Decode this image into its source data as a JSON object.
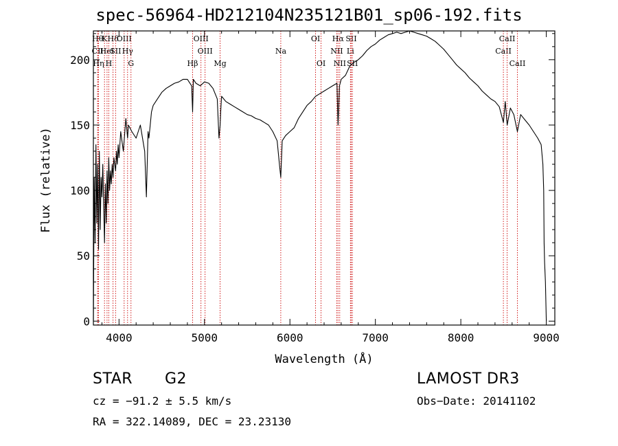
{
  "chart_data": {
    "type": "line",
    "title": "spec-56964-HD212104N235121B01_sp06-192.fits",
    "xlabel": "Wavelength (Å)",
    "ylabel": "Flux (relative)",
    "xlim": [
      3700,
      9100
    ],
    "ylim": [
      -3,
      222
    ],
    "x_ticks": [
      4000,
      5000,
      6000,
      7000,
      8000,
      9000
    ],
    "y_ticks": [
      0,
      50,
      100,
      150,
      200
    ],
    "x_tick_labels": [
      "4000",
      "5000",
      "6000",
      "7000",
      "8000",
      "9000"
    ],
    "y_tick_labels": [
      "0",
      "50",
      "100",
      "150",
      "200"
    ],
    "series": [
      {
        "name": "spectrum",
        "color": "#000000",
        "x": [
          3700,
          3710,
          3720,
          3730,
          3740,
          3750,
          3760,
          3770,
          3780,
          3790,
          3800,
          3810,
          3820,
          3830,
          3840,
          3850,
          3860,
          3870,
          3880,
          3890,
          3900,
          3910,
          3920,
          3930,
          3940,
          3950,
          3960,
          3970,
          3980,
          3990,
          4000,
          4020,
          4050,
          4080,
          4100,
          4110,
          4150,
          4200,
          4250,
          4300,
          4320,
          4340,
          4350,
          4380,
          4400,
          4450,
          4500,
          4550,
          4600,
          4650,
          4700,
          4750,
          4800,
          4850,
          4861,
          4870,
          4900,
          4950,
          5000,
          5050,
          5100,
          5150,
          5170,
          5183,
          5190,
          5200,
          5250,
          5300,
          5350,
          5400,
          5450,
          5500,
          5550,
          5600,
          5650,
          5700,
          5750,
          5800,
          5850,
          5880,
          5893,
          5910,
          5950,
          6000,
          6050,
          6100,
          6150,
          6200,
          6250,
          6300,
          6350,
          6400,
          6450,
          6500,
          6550,
          6563,
          6580,
          6600,
          6650,
          6700,
          6750,
          6800,
          6850,
          6900,
          6950,
          7000,
          7050,
          7100,
          7150,
          7200,
          7250,
          7300,
          7350,
          7400,
          7450,
          7500,
          7550,
          7600,
          7650,
          7700,
          7750,
          7800,
          7850,
          7900,
          7950,
          8000,
          8050,
          8100,
          8150,
          8200,
          8250,
          8300,
          8350,
          8400,
          8450,
          8498,
          8520,
          8542,
          8580,
          8620,
          8662,
          8700,
          8750,
          8800,
          8850,
          8900,
          8940,
          8960,
          8970,
          8975,
          8980,
          8990,
          9000
        ],
        "y": [
          0,
          110,
          60,
          135,
          75,
          120,
          55,
          130,
          70,
          110,
          95,
          120,
          90,
          60,
          105,
          75,
          115,
          90,
          125,
          100,
          115,
          105,
          120,
          110,
          125,
          120,
          115,
          130,
          120,
          135,
          125,
          145,
          130,
          155,
          140,
          150,
          145,
          140,
          150,
          130,
          95,
          145,
          140,
          160,
          165,
          170,
          175,
          178,
          180,
          182,
          183,
          185,
          185,
          180,
          160,
          185,
          182,
          180,
          183,
          182,
          178,
          170,
          140,
          150,
          160,
          172,
          168,
          166,
          164,
          162,
          160,
          158,
          157,
          155,
          154,
          152,
          150,
          145,
          138,
          118,
          110,
          138,
          142,
          145,
          148,
          155,
          160,
          165,
          168,
          172,
          174,
          176,
          178,
          180,
          182,
          150,
          180,
          185,
          188,
          195,
          198,
          200,
          203,
          207,
          210,
          212,
          215,
          217,
          219,
          220,
          221,
          220,
          221,
          222,
          221,
          220,
          219,
          218,
          216,
          214,
          211,
          208,
          204,
          200,
          196,
          193,
          190,
          186,
          183,
          180,
          176,
          173,
          170,
          168,
          164,
          152,
          168,
          150,
          163,
          158,
          145,
          158,
          154,
          150,
          145,
          140,
          135,
          120,
          100,
          60,
          45,
          30,
          0
        ]
      }
    ],
    "line_markers": [
      {
        "x": 3750,
        "label": "Hθ",
        "row": 1
      },
      {
        "x": 3750,
        "label": "CII",
        "row": 2
      },
      {
        "x": 3760,
        "label": "Hη",
        "row": 3
      },
      {
        "x": 3830,
        "label": "K",
        "row": 1
      },
      {
        "x": 3860,
        "label": "HeI",
        "row": 2
      },
      {
        "x": 3880,
        "label": "H",
        "row": 3
      },
      {
        "x": 3930,
        "label": "Hδ",
        "row": 1
      },
      {
        "x": 3960,
        "label": "SII",
        "row": 2
      },
      {
        "x": 4060,
        "label": "OIII",
        "row": 1
      },
      {
        "x": 4100,
        "label": "Hγ",
        "row": 2
      },
      {
        "x": 4140,
        "label": "G",
        "row": 3
      },
      {
        "x": 4861,
        "label": "Hβ",
        "row": 3
      },
      {
        "x": 4959,
        "label": "OIII",
        "row": 1
      },
      {
        "x": 5007,
        "label": "OIII",
        "row": 2
      },
      {
        "x": 5183,
        "label": "Mg",
        "row": 3
      },
      {
        "x": 5893,
        "label": "Na",
        "row": 2
      },
      {
        "x": 6300,
        "label": "OI",
        "row": 1
      },
      {
        "x": 6364,
        "label": "OI",
        "row": 3
      },
      {
        "x": 6548,
        "label": "NII",
        "row": 2
      },
      {
        "x": 6563,
        "label": "Hα",
        "row": 1
      },
      {
        "x": 6583,
        "label": "NII",
        "row": 3
      },
      {
        "x": 6708,
        "label": "Li",
        "row": 2
      },
      {
        "x": 6717,
        "label": "SII",
        "row": 1
      },
      {
        "x": 6731,
        "label": "SII",
        "row": 3
      },
      {
        "x": 8498,
        "label": "CaII",
        "row": 2
      },
      {
        "x": 8542,
        "label": "CaII",
        "row": 1
      },
      {
        "x": 8662,
        "label": "CaII",
        "row": 3
      }
    ]
  },
  "info": {
    "obj_class": "STAR",
    "subclass": "G2",
    "survey": "LAMOST DR3",
    "redshift": "cz = −91.2 ± 5.5 km/s",
    "obs_date": "Obs−Date: 20141102",
    "coords": "RA = 322.14089, DEC =  23.23130"
  }
}
